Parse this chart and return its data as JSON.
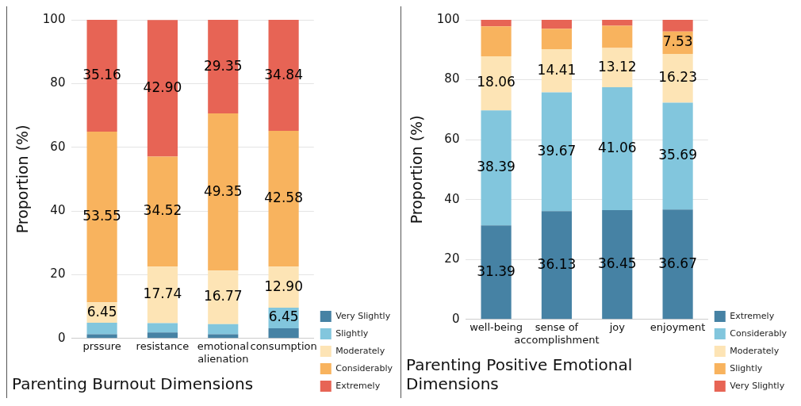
{
  "chart_data": [
    {
      "type": "bar",
      "stacked": true,
      "title": "Parenting Burnout Dimensions",
      "ylabel": "Proportion (%)",
      "categories": [
        [
          "prssure"
        ],
        [
          "resistance"
        ],
        [
          "emotional",
          "alienation"
        ],
        [
          "consumption"
        ]
      ],
      "ylim": [
        0,
        100
      ],
      "yticks": [
        0,
        20,
        40,
        60,
        80,
        100
      ],
      "grid": "y",
      "legend": "bottom right",
      "series": [
        {
          "name": "Very Slightly",
          "color": "#4682a4",
          "values": [
            1.3,
            1.9,
            1.3,
            3.2
          ],
          "value_labels": [
            null,
            null,
            null,
            null
          ]
        },
        {
          "name": "Slightly",
          "color": "#82c6dd",
          "values": [
            3.6,
            2.9,
            3.2,
            6.45
          ],
          "value_labels": [
            null,
            null,
            null,
            "6.45"
          ]
        },
        {
          "name": "Moderately",
          "color": "#fde4b5",
          "values": [
            6.45,
            17.74,
            16.77,
            12.9
          ],
          "value_labels": [
            "6.45",
            "17.74",
            "16.77",
            "12.90"
          ]
        },
        {
          "name": "Considerably",
          "color": "#f8b35e",
          "values": [
            53.55,
            34.52,
            49.35,
            42.58
          ],
          "value_labels": [
            "53.55",
            "34.52",
            "49.35",
            "42.58"
          ]
        },
        {
          "name": "Extremely",
          "color": "#e76455",
          "values": [
            35.16,
            42.9,
            29.35,
            34.84
          ],
          "value_labels": [
            "35.16",
            "42.90",
            "29.35",
            "34.84"
          ]
        }
      ]
    },
    {
      "type": "bar",
      "stacked": true,
      "title": "Parenting Positive Emotional Dimensions",
      "ylabel": "Proportion (%)",
      "categories": [
        [
          "well-being"
        ],
        [
          "sense of",
          "accomplishment"
        ],
        [
          "joy"
        ],
        [
          "enjoyment"
        ]
      ],
      "ylim": [
        0,
        100
      ],
      "yticks": [
        0,
        20,
        40,
        60,
        80,
        100
      ],
      "grid": "y",
      "legend": "bottom right",
      "series": [
        {
          "name": "Extremely",
          "color": "#4682a4",
          "values": [
            31.39,
            36.13,
            36.45,
            36.67
          ],
          "value_labels": [
            "31.39",
            "36.13",
            "36.45",
            "36.67"
          ]
        },
        {
          "name": "Considerably",
          "color": "#82c6dd",
          "values": [
            38.39,
            39.67,
            41.06,
            35.69
          ],
          "value_labels": [
            "38.39",
            "39.67",
            "41.06",
            "35.69"
          ]
        },
        {
          "name": "Moderately",
          "color": "#fde4b5",
          "values": [
            18.06,
            14.41,
            13.12,
            16.23
          ],
          "value_labels": [
            "18.06",
            "14.41",
            "13.12",
            "16.23"
          ]
        },
        {
          "name": "Slightly",
          "color": "#f8b35e",
          "values": [
            10,
            6.8,
            7.4,
            7.53
          ],
          "value_labels": [
            null,
            null,
            null,
            "7.53"
          ]
        },
        {
          "name": "Very Slightly",
          "color": "#e76455",
          "values": [
            2.2,
            3,
            2,
            3.9
          ],
          "value_labels": [
            null,
            null,
            null,
            null
          ]
        }
      ]
    }
  ]
}
